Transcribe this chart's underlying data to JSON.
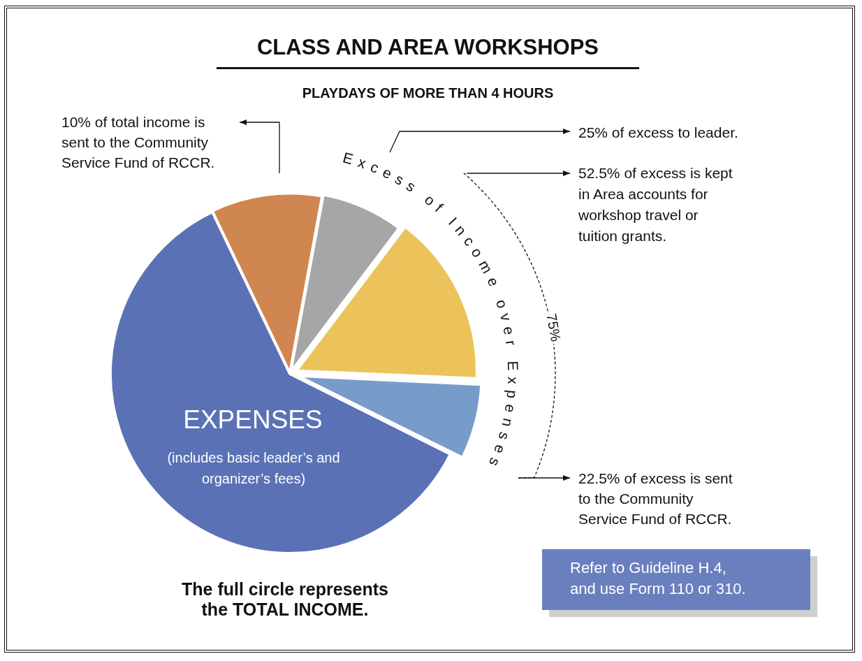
{
  "chart_data": {
    "type": "pie",
    "title": "CLASS AND AREA WORKSHOPS",
    "subtitle": "PLAYDAYS OF MORE THAN 4 HOURS",
    "categories": [
      "10% of total income is sent to the Community Service Fund of RCCR.",
      null,
      null,
      null,
      "EXPENSES"
    ],
    "values": [
      10,
      7.4,
      15.4,
      6.7,
      60.5
    ],
    "colors": [
      "#d08650",
      "#a6a6a6",
      "#ecc35a",
      "#789cca",
      "#5a72b5"
    ],
    "annotations": [
      "(includes basic leader’s and organizer’s fees)",
      "Excess of Income over Expenses",
      "75%",
      "The full circle represents the TOTAL INCOME.",
      "Refer to Guideline H.4, and use Form 110 or 310.",
      "25% of excess to leader.",
      "52.5% of excess is kept in Area accounts for workshop travel or tuition grants.",
      "22.5% of excess is sent to the Community Service Fund of RCCR."
    ]
  }
}
